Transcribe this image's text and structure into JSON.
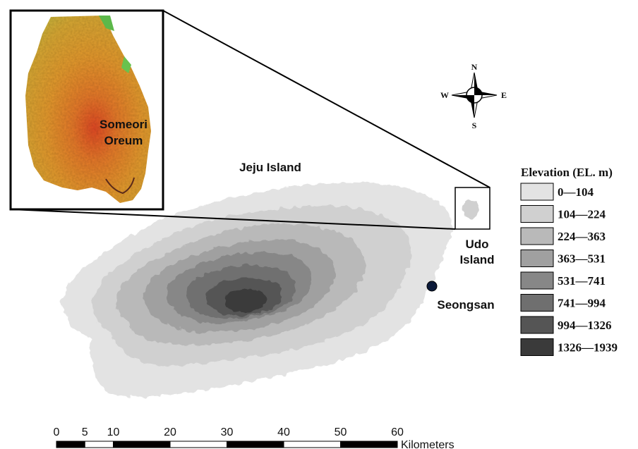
{
  "labels": {
    "jeju_island": "Jeju Island",
    "udo_line1": "Udo",
    "udo_line2": "Island",
    "seongsan": "Seongsan",
    "someori_line1": "Someori",
    "someori_line2": "Oreum"
  },
  "compass": {
    "north": "N",
    "south": "S",
    "east": "E",
    "west": "W",
    "icon": "compass-rose-icon"
  },
  "legend": {
    "title": "Elevation (EL. m)",
    "items": [
      {
        "label": "0—104",
        "color": "#e3e3e3"
      },
      {
        "label": "104—224",
        "color": "#d0d0d0"
      },
      {
        "label": "224—363",
        "color": "#b9b9b9"
      },
      {
        "label": "363—531",
        "color": "#a0a0a0"
      },
      {
        "label": "531—741",
        "color": "#878787"
      },
      {
        "label": "741—994",
        "color": "#6f6f6f"
      },
      {
        "label": "994—1326",
        "color": "#555555"
      },
      {
        "label": "1326—1939",
        "color": "#3a3a3a"
      }
    ]
  },
  "scale_bar": {
    "ticks": [
      "0",
      "5",
      "10",
      "20",
      "30",
      "40",
      "50",
      "60"
    ],
    "unit": "Kilometers"
  },
  "inset": {
    "colors": {
      "base": "#e49a2c",
      "low": "#d4b33a",
      "high": "#e8452a",
      "edge": "#67b94a"
    }
  }
}
